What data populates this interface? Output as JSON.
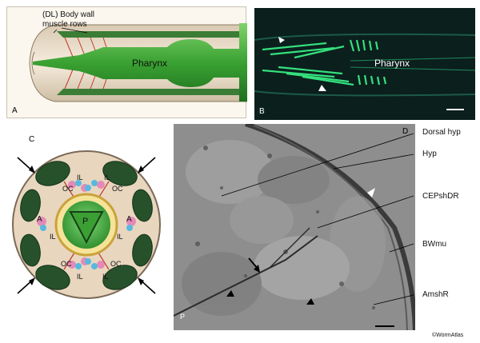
{
  "panels": {
    "a": {
      "letter": "A",
      "dl_label_line1": "(DL) Body wall",
      "dl_label_line2": "muscle rows",
      "pharynx_label": "Pharynx"
    },
    "b": {
      "letter": "B",
      "pharynx_label": "Pharynx"
    },
    "c": {
      "letter": "C",
      "il_label": "IL",
      "oc_label": "OC",
      "a_label": "A",
      "p_label": "P"
    },
    "d": {
      "letter": "D",
      "p_label": "P",
      "callouts": [
        "Dorsal hyp",
        "Hyp",
        "CEPshDR",
        "BWmu",
        "AmshR"
      ]
    }
  },
  "credit": "©WormAtlas",
  "colors": {
    "muscle_green": "#3f8f3a",
    "pharynx_green": "#48b03c",
    "fluor_green": "#33e07a",
    "cuticle": "#e9dcc7",
    "dark_muscle": "#27512a"
  }
}
